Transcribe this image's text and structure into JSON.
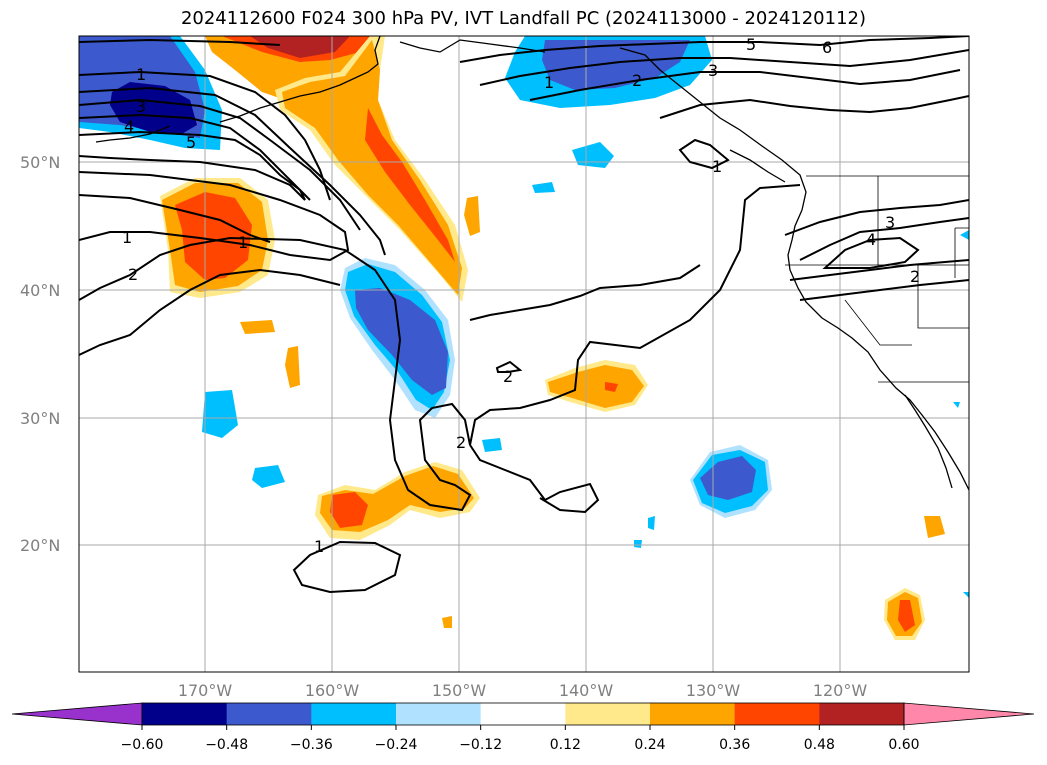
{
  "title": "2024112600 F024 300 hPa PV, IVT Landfall PC (2024113000 - 2024120112)",
  "map": {
    "lat_labels": [
      "50°N",
      "40°N",
      "30°N",
      "20°N"
    ],
    "lon_labels": [
      "170°W",
      "160°W",
      "150°W",
      "140°W",
      "130°W",
      "120°W"
    ],
    "contour_labels": [
      "1",
      "2",
      "3",
      "4",
      "5",
      "6"
    ]
  },
  "colorbar": {
    "ticks": [
      "−0.60",
      "−0.48",
      "−0.36",
      "−0.24",
      "−0.12",
      "0.12",
      "0.24",
      "0.36",
      "0.48",
      "0.60"
    ],
    "colors": [
      "#9932cc",
      "#00008b",
      "#3c5acd",
      "#00bfff",
      "#b0e2ff",
      "#ffffff",
      "#ffe98a",
      "#ffa500",
      "#ff4500",
      "#b22222",
      "#ff88aa"
    ]
  }
}
